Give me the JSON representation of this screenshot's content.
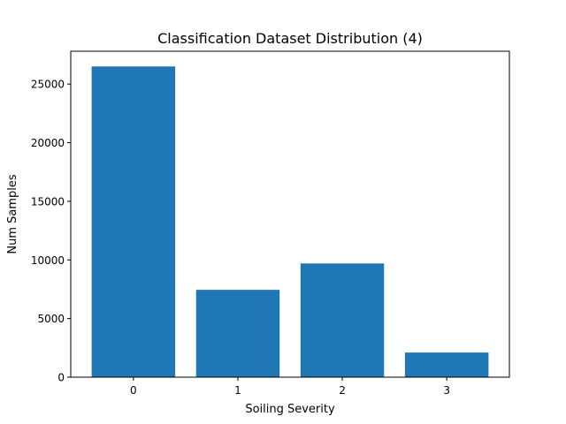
{
  "chart_data": {
    "type": "bar",
    "title": "Classification Dataset Distribution (4)",
    "xlabel": "Soiling Severity",
    "ylabel": "Num Samples",
    "categories": [
      "0",
      "1",
      "2",
      "3"
    ],
    "values": [
      26500,
      7450,
      9700,
      2100
    ],
    "ylim": [
      0,
      27800
    ],
    "yticks": [
      0,
      5000,
      10000,
      15000,
      20000,
      25000
    ],
    "ytick_labels": [
      "0",
      "5000",
      "10000",
      "15000",
      "20000",
      "25000"
    ],
    "grid": false,
    "legend": "none",
    "bar_color": "#1f77b4"
  }
}
